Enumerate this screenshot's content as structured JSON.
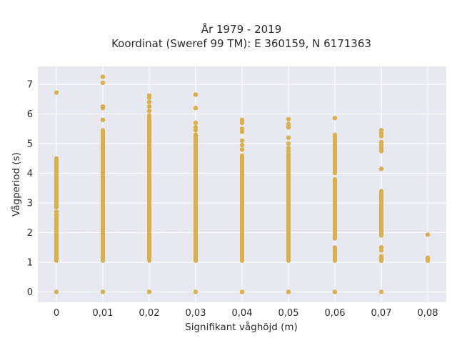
{
  "chart_data": {
    "type": "scatter",
    "title_lines": [
      "År 1979 - 2019",
      "Koordinat (Sweref 99 TM): E 360159, N 6171363"
    ],
    "xlabel": "Signifikant våghöjd (m)",
    "ylabel": "Vågperiod (s)",
    "xlim": [
      -0.004,
      0.084
    ],
    "ylim": [
      -0.35,
      7.6
    ],
    "grid": true,
    "x_ticks": [
      0,
      0.01,
      0.02,
      0.03,
      0.04,
      0.05,
      0.06,
      0.07,
      0.08
    ],
    "x_tick_labels": [
      "0",
      "0,01",
      "0,02",
      "0,03",
      "0,04",
      "0,05",
      "0,06",
      "0,07",
      "0,08"
    ],
    "y_ticks": [
      0,
      1,
      2,
      3,
      4,
      5,
      6,
      7
    ],
    "y_tick_labels": [
      "0",
      "1",
      "2",
      "3",
      "4",
      "5",
      "6",
      "7"
    ],
    "marker_color": "#d4a42a",
    "plot_bg": "#e8e8f0",
    "columns": [
      {
        "x": 0.0,
        "segments": [
          [
            1.05,
            2.55
          ],
          [
            2.85,
            4.5
          ]
        ],
        "points": [
          0,
          6.72,
          2.6,
          2.7
        ]
      },
      {
        "x": 0.01,
        "segments": [
          [
            1.05,
            5.45
          ]
        ],
        "points": [
          0,
          5.8,
          6.2,
          6.25,
          7.05,
          7.25
        ]
      },
      {
        "x": 0.02,
        "segments": [
          [
            1.05,
            5.95
          ]
        ],
        "points": [
          0,
          6.1,
          6.25,
          6.4,
          6.55,
          6.62
        ]
      },
      {
        "x": 0.03,
        "segments": [
          [
            1.05,
            5.3
          ]
        ],
        "points": [
          0,
          5.45,
          5.55,
          5.7,
          6.2,
          6.65
        ]
      },
      {
        "x": 0.04,
        "segments": [
          [
            1.05,
            4.6
          ]
        ],
        "points": [
          0,
          4.8,
          4.95,
          5.1,
          5.4,
          5.5,
          5.7,
          5.8
        ]
      },
      {
        "x": 0.05,
        "segments": [
          [
            1.05,
            4.65
          ]
        ],
        "points": [
          0,
          4.75,
          4.85,
          5.0,
          5.2,
          5.55,
          5.65,
          5.82
        ]
      },
      {
        "x": 0.06,
        "segments": [
          [
            1.05,
            1.5
          ],
          [
            1.8,
            3.8
          ],
          [
            4.0,
            5.3
          ]
        ],
        "points": [
          0,
          5.86
        ]
      },
      {
        "x": 0.07,
        "segments": [
          [
            1.9,
            3.4
          ]
        ],
        "points": [
          0,
          1.05,
          1.1,
          1.15,
          1.2,
          1.4,
          1.5,
          4.15,
          4.75,
          4.85,
          4.95,
          5.05,
          5.25,
          5.35,
          5.45
        ]
      },
      {
        "x": 0.08,
        "segments": [],
        "points": [
          1.05,
          1.1,
          1.15,
          1.93
        ]
      }
    ]
  }
}
